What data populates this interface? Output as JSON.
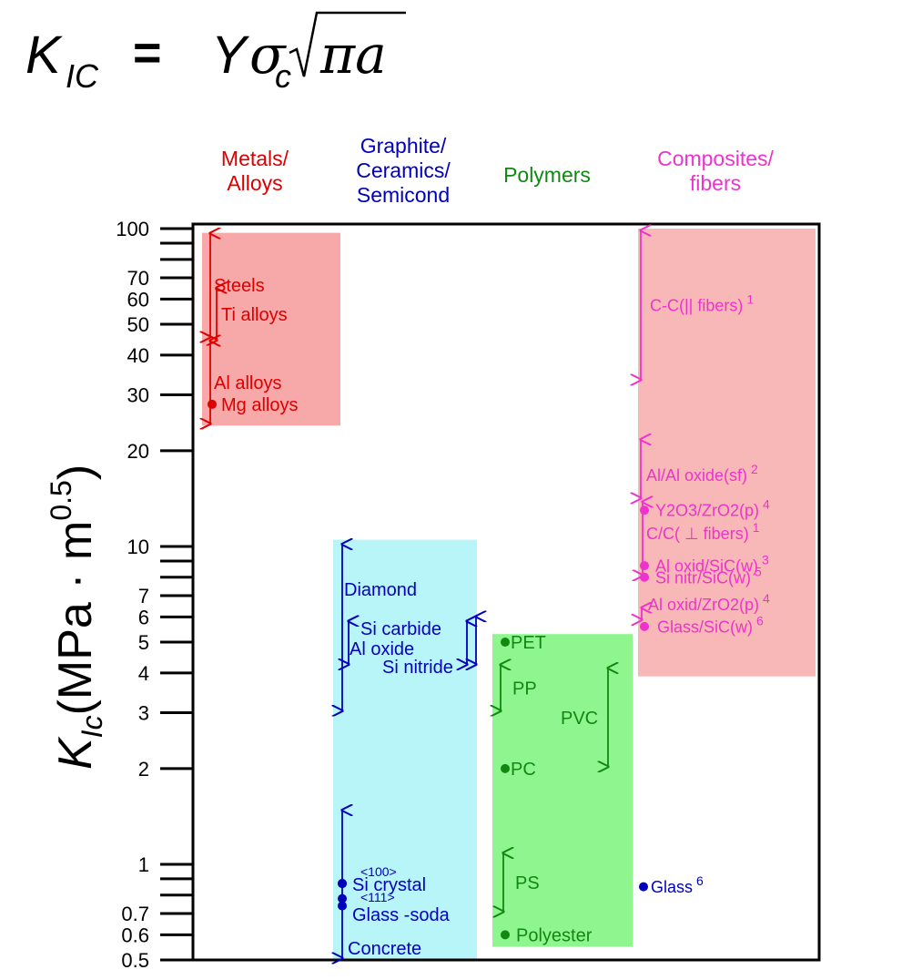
{
  "colors": {
    "metals": "#dd0000",
    "ceramics": "#0000bb",
    "polymers": "#118811",
    "composites": "#ee33cc",
    "metals_band": "#f7a8a8",
    "ceramics_band": "#b8f5f8",
    "polymers_band": "#8ff58f",
    "composites_band": "#f8b8b8"
  },
  "chart_data": {
    "type": "range",
    "formula": {
      "K": "K",
      "K_sub": "IC",
      "eq": "=",
      "Y": "Y",
      "sigma": "σ",
      "sigma_sub": "c",
      "pi_a": "πa"
    },
    "y_axis": {
      "scale": "log",
      "range": [
        0.5,
        100
      ],
      "label_main": "K",
      "label_sub": "Ic",
      "label_rest": "(MPa · m",
      "label_sup": "0.5",
      "label_close": ")",
      "tick_labels": [
        {
          "v": 100,
          "t": "100"
        },
        {
          "v": 70,
          "t": "70"
        },
        {
          "v": 60,
          "t": "60"
        },
        {
          "v": 50,
          "t": "50"
        },
        {
          "v": 40,
          "t": "40"
        },
        {
          "v": 30,
          "t": "30"
        },
        {
          "v": 20,
          "t": "20"
        },
        {
          "v": 10,
          "t": "10"
        },
        {
          "v": 7,
          "t": "7"
        },
        {
          "v": 6,
          "t": "6"
        },
        {
          "v": 5,
          "t": "5"
        },
        {
          "v": 4,
          "t": "4"
        },
        {
          "v": 3,
          "t": "3"
        },
        {
          "v": 2,
          "t": "2"
        },
        {
          "v": 1,
          "t": "1"
        },
        {
          "v": 0.7,
          "t": "0.7"
        },
        {
          "v": 0.6,
          "t": "0.6"
        },
        {
          "v": 0.5,
          "t": "0.5"
        }
      ],
      "minor_ticks": [
        90,
        80,
        9,
        8,
        0.9,
        0.8
      ]
    },
    "categories": [
      {
        "key": "metals",
        "lines": [
          "Metals/",
          "Alloys"
        ],
        "band": [
          24,
          97
        ]
      },
      {
        "key": "ceramics",
        "lines": [
          "Graphite/",
          "Ceramics/",
          "Semicond"
        ],
        "band": [
          0.5,
          10.5
        ]
      },
      {
        "key": "polymers",
        "lines": [
          "Polymers"
        ],
        "band": [
          0.55,
          5.3
        ]
      },
      {
        "key": "composites",
        "lines": [
          "Composites/",
          "fibers"
        ],
        "band": [
          3.9,
          100
        ]
      }
    ],
    "items": [
      {
        "cat": "metals",
        "label": "Steels",
        "range": [
          45,
          98
        ]
      },
      {
        "cat": "metals",
        "label": "Ti alloys",
        "range": [
          44,
          66
        ]
      },
      {
        "cat": "metals",
        "label": "Al alloys",
        "range": [
          24,
          45
        ]
      },
      {
        "cat": "metals",
        "label": "Mg alloys",
        "value": 28
      },
      {
        "cat": "ceramics",
        "label": "Diamond",
        "range": [
          3,
          10.3
        ]
      },
      {
        "cat": "ceramics",
        "label": "Si carbide",
        "range": [
          4.2,
          5.9
        ]
      },
      {
        "cat": "ceramics",
        "label": "Al oxide",
        "range": [
          4.2,
          5.9
        ]
      },
      {
        "cat": "ceramics",
        "label": "Si nitride",
        "range": [
          4.2,
          6.1
        ]
      },
      {
        "cat": "ceramics",
        "label": "<100>",
        "value": 0.87
      },
      {
        "cat": "ceramics",
        "label": "Si crystal",
        "value": 0.87
      },
      {
        "cat": "ceramics",
        "label": "<111>",
        "value": 0.78
      },
      {
        "cat": "ceramics",
        "label": "Glass -soda",
        "value": 0.74
      },
      {
        "cat": "ceramics",
        "label": "Concrete",
        "range": [
          0.5,
          1.5
        ]
      },
      {
        "cat": "polymers",
        "label": "PET",
        "value": 5
      },
      {
        "cat": "polymers",
        "label": "PP",
        "range": [
          3,
          4.3
        ]
      },
      {
        "cat": "polymers",
        "label": "PVC",
        "range": [
          2,
          4.2
        ]
      },
      {
        "cat": "polymers",
        "label": "PC",
        "value": 2
      },
      {
        "cat": "polymers",
        "label": "PS",
        "range": [
          0.7,
          1.1
        ]
      },
      {
        "cat": "polymers",
        "label": "Polyester",
        "value": 0.6
      },
      {
        "cat": "composites",
        "label": "C-C(|| fibers)",
        "sup": "1",
        "range": [
          33,
          100
        ]
      },
      {
        "cat": "composites",
        "label": "Al/Al oxide(sf)",
        "sup": "2",
        "range": [
          14,
          22
        ]
      },
      {
        "cat": "composites",
        "label": "Y2O3/ZrO2(p)",
        "sup": "4",
        "value": 13
      },
      {
        "cat": "composites",
        "label": "C/C( ⊥ fibers)",
        "sup": "1",
        "range": [
          8,
          14
        ]
      },
      {
        "cat": "composites",
        "label": "Al oxid/SiC(w)",
        "sup": "3",
        "value": 8.7
      },
      {
        "cat": "composites",
        "label": "Si nitr/SiC(w)",
        "sup": "5",
        "value": 8
      },
      {
        "cat": "composites",
        "label": "Al oxid/ZrO2(p)",
        "sup": "4",
        "range": [
          5.8,
          6.5
        ]
      },
      {
        "cat": "composites",
        "label": "Glass/SiC(w)",
        "sup": "6",
        "value": 5.6
      },
      {
        "cat": "composites",
        "label": "Glass",
        "sup": "6",
        "value": 0.85
      }
    ]
  }
}
